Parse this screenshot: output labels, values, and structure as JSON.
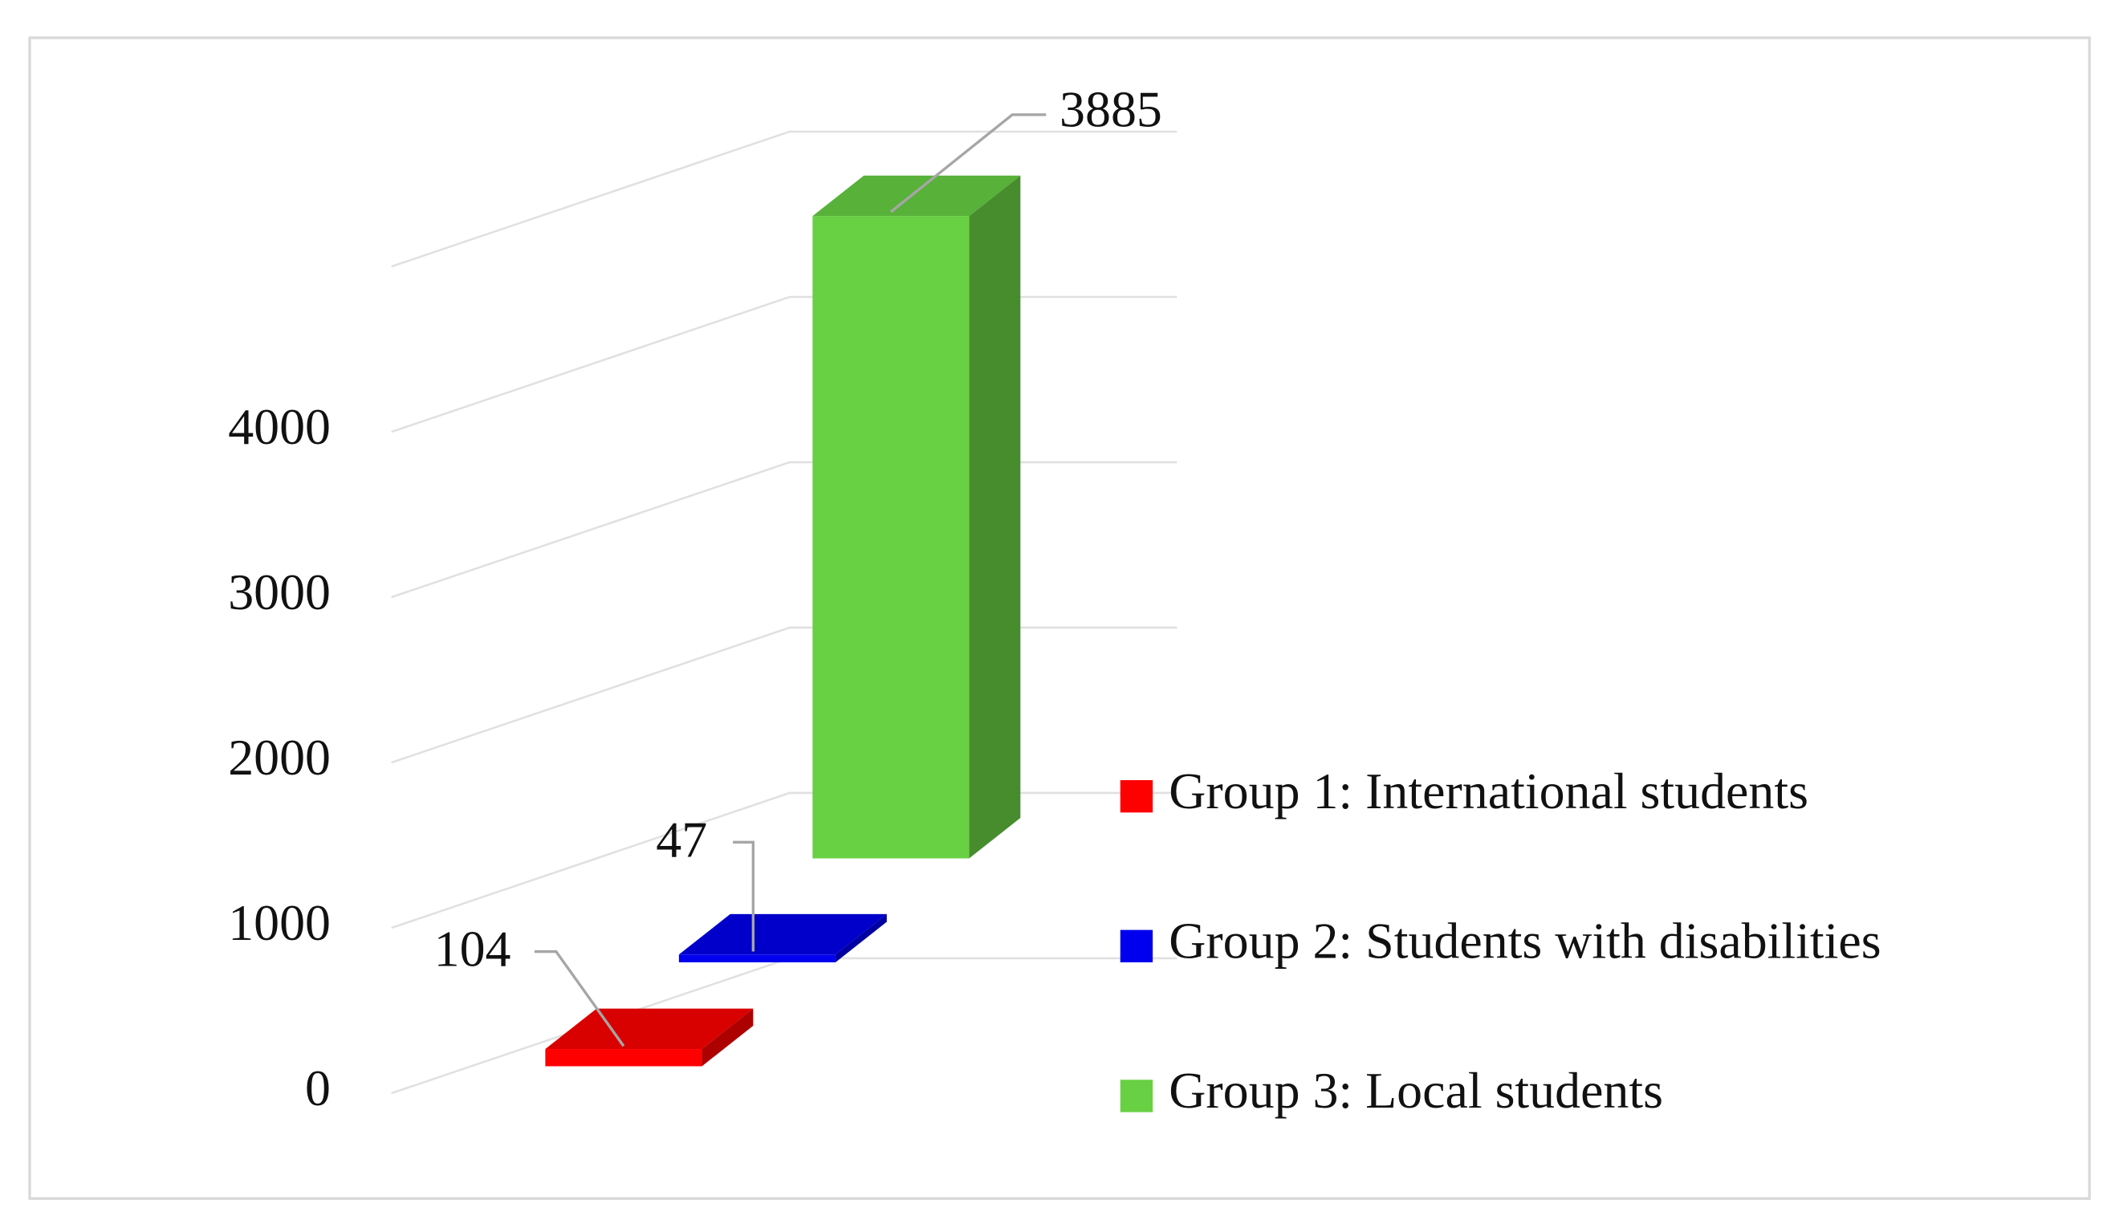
{
  "chart_data": {
    "type": "bar3d",
    "series": [
      {
        "name": "Group 1: International students",
        "color": "#ff0000",
        "values": [
          104
        ]
      },
      {
        "name": "Group 2: Students with disabilities",
        "color": "#0000ee",
        "values": [
          47
        ]
      },
      {
        "name": "Group 3: Local students",
        "color": "#68d043",
        "values": [
          3885
        ]
      }
    ],
    "ylim": [
      0,
      5000
    ],
    "yticks": [
      0,
      1000,
      2000,
      3000,
      4000
    ],
    "grid": true,
    "legend": "right"
  }
}
